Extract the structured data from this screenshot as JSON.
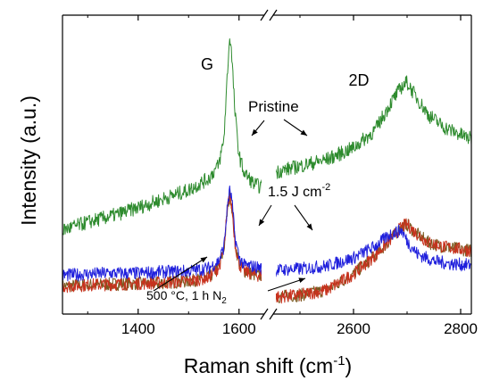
{
  "chart_data": {
    "type": "line",
    "title": "",
    "xlabel": "Raman shift (cm",
    "xlabel_sup": "-1",
    "xlabel_tail": ")",
    "ylabel": "Intensity (a.u.)",
    "broken_x_axis": true,
    "segments": [
      {
        "range": [
          1250,
          1650
        ],
        "ticks": [
          1400,
          1600
        ],
        "tick_labels": [
          "1400",
          "1600"
        ]
      },
      {
        "range": [
          2450,
          2820
        ],
        "ticks": [
          2600,
          2800
        ],
        "tick_labels": [
          "2600",
          "2800"
        ]
      }
    ],
    "y_ticks_shown": false,
    "peak_labels": {
      "g": "G",
      "twod": "2D"
    },
    "annotations": {
      "pristine": "Pristine",
      "fluence_main": "1.5 J cm",
      "fluence_sup": "-2",
      "anneal_main": "500 °C, 1 h N",
      "anneal_sub": "2"
    },
    "colors": {
      "pristine": "#2e8b2e",
      "laser": "#1f1fdc",
      "annealed": "#c8321e",
      "annealed_dark": "#7a5a20"
    },
    "series": [
      {
        "key": "pristine",
        "points": [
          [
            1250,
            8.5
          ],
          [
            1300,
            9.6
          ],
          [
            1350,
            10.5
          ],
          [
            1400,
            11.6
          ],
          [
            1450,
            12.8
          ],
          [
            1500,
            14.0
          ],
          [
            1540,
            15.6
          ],
          [
            1560,
            17.5
          ],
          [
            1570,
            21.0
          ],
          [
            1578,
            31.5
          ],
          [
            1582,
            35.3
          ],
          [
            1586,
            32.0
          ],
          [
            1592,
            24.5
          ],
          [
            1600,
            18.8
          ],
          [
            1610,
            16.4
          ],
          [
            1630,
            14.8
          ],
          [
            1650,
            14.3
          ],
          [
            2450,
            16.4
          ],
          [
            2500,
            17.3
          ],
          [
            2550,
            18.2
          ],
          [
            2600,
            19.8
          ],
          [
            2640,
            22.2
          ],
          [
            2670,
            26.0
          ],
          [
            2690,
            28.2
          ],
          [
            2700,
            28.8
          ],
          [
            2715,
            27.0
          ],
          [
            2740,
            24.3
          ],
          [
            2770,
            22.6
          ],
          [
            2800,
            21.6
          ],
          [
            2820,
            21.0
          ]
        ]
      },
      {
        "key": "laser",
        "points": [
          [
            1250,
            2.3
          ],
          [
            1300,
            2.5
          ],
          [
            1350,
            2.6
          ],
          [
            1400,
            2.6
          ],
          [
            1450,
            2.8
          ],
          [
            1500,
            2.9
          ],
          [
            1540,
            3.3
          ],
          [
            1560,
            4.3
          ],
          [
            1570,
            6.2
          ],
          [
            1578,
            12.5
          ],
          [
            1582,
            14.0
          ],
          [
            1586,
            12.5
          ],
          [
            1592,
            7.5
          ],
          [
            1600,
            4.8
          ],
          [
            1610,
            3.7
          ],
          [
            1630,
            3.5
          ],
          [
            1650,
            3.3
          ],
          [
            2450,
            3.0
          ],
          [
            2500,
            3.2
          ],
          [
            2550,
            3.6
          ],
          [
            2600,
            4.7
          ],
          [
            2640,
            6.3
          ],
          [
            2670,
            8.0
          ],
          [
            2690,
            8.5
          ],
          [
            2700,
            7.0
          ],
          [
            2720,
            5.2
          ],
          [
            2750,
            4.3
          ],
          [
            2780,
            3.9
          ],
          [
            2820,
            3.7
          ]
        ]
      },
      {
        "key": "annealed",
        "points": [
          [
            1250,
            0.8
          ],
          [
            1300,
            1.0
          ],
          [
            1350,
            1.1
          ],
          [
            1400,
            1.2
          ],
          [
            1450,
            1.3
          ],
          [
            1500,
            1.5
          ],
          [
            1540,
            2.0
          ],
          [
            1560,
            3.4
          ],
          [
            1570,
            5.8
          ],
          [
            1578,
            12.0
          ],
          [
            1582,
            13.3
          ],
          [
            1586,
            11.6
          ],
          [
            1592,
            6.8
          ],
          [
            1600,
            3.9
          ],
          [
            1610,
            2.9
          ],
          [
            1630,
            2.4
          ],
          [
            1650,
            2.2
          ],
          [
            2450,
            -0.7
          ],
          [
            2500,
            -0.4
          ],
          [
            2550,
            0.3
          ],
          [
            2600,
            2.5
          ],
          [
            2640,
            5.0
          ],
          [
            2670,
            7.3
          ],
          [
            2690,
            9.0
          ],
          [
            2700,
            9.3
          ],
          [
            2715,
            8.2
          ],
          [
            2740,
            6.8
          ],
          [
            2770,
            6.2
          ],
          [
            2800,
            5.9
          ],
          [
            2820,
            5.7
          ]
        ]
      }
    ]
  }
}
